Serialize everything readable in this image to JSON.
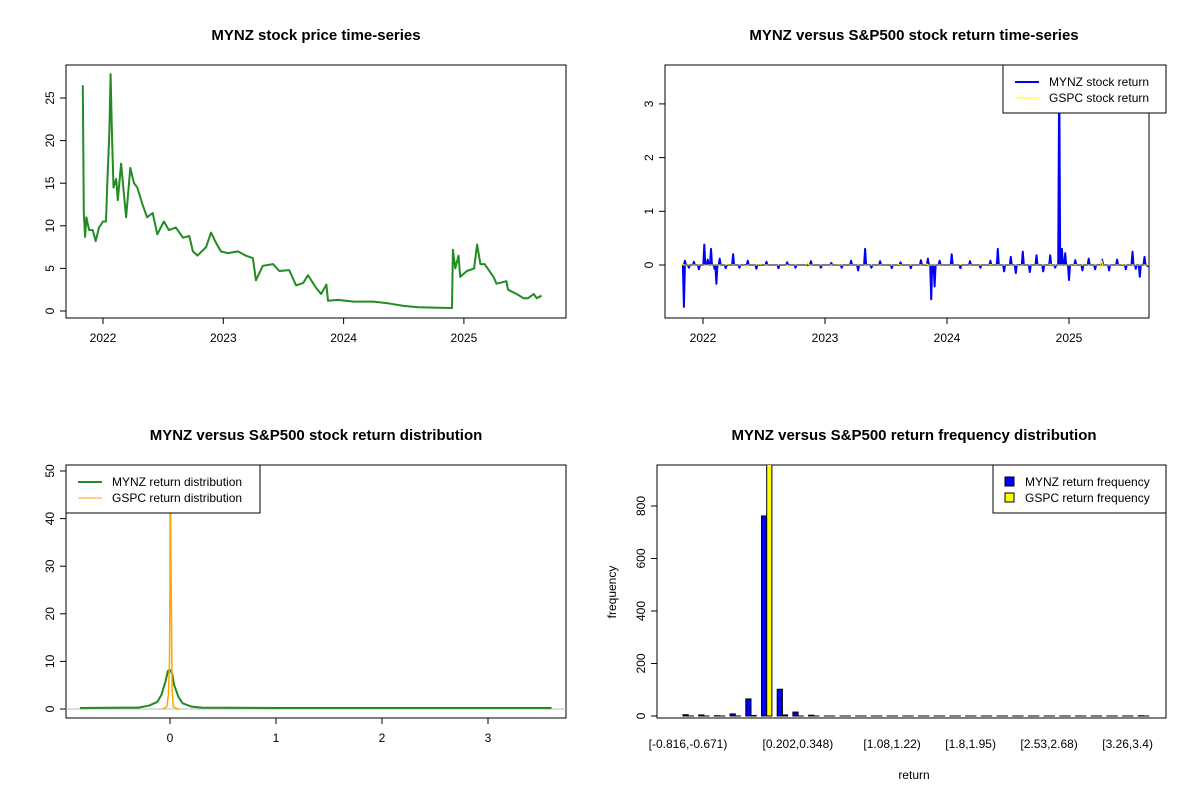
{
  "chart_data": [
    {
      "type": "line",
      "title": "MYNZ stock price time-series",
      "xlabel": "",
      "ylabel": "",
      "x_ticks": [
        "2022",
        "2023",
        "2024",
        "2025"
      ],
      "y_ticks": [
        "0",
        "5",
        "10",
        "15",
        "20",
        "25"
      ],
      "ylim": [
        0,
        28
      ],
      "colors": {
        "price": "#228B22"
      },
      "series": [
        {
          "x": [
            "2021-11-01",
            "2021-11-04",
            "2021-11-08",
            "2021-11-12",
            "2021-11-20",
            "2021-12-01",
            "2021-12-10",
            "2021-12-20",
            "2022-01-01",
            "2022-01-10",
            "2022-01-14",
            "2022-01-20",
            "2022-01-24",
            "2022-01-28",
            "2022-02-02",
            "2022-02-10",
            "2022-02-15",
            "2022-02-25",
            "2022-03-05",
            "2022-03-12",
            "2022-03-25",
            "2022-04-05",
            "2022-04-15",
            "2022-05-01",
            "2022-05-15",
            "2022-06-01",
            "2022-06-15",
            "2022-07-05",
            "2022-07-20",
            "2022-08-10",
            "2022-09-01",
            "2022-09-20",
            "2022-10-01",
            "2022-10-15",
            "2022-11-10",
            "2022-11-25",
            "2022-12-10",
            "2022-12-25",
            "2023-01-15",
            "2023-02-15",
            "2023-03-10",
            "2023-04-01",
            "2023-04-10",
            "2023-05-01",
            "2023-06-01",
            "2023-06-20",
            "2023-07-20",
            "2023-08-10",
            "2023-09-01",
            "2023-09-15",
            "2023-10-10",
            "2023-10-25",
            "2023-11-10",
            "2023-11-15",
            "2023-12-15",
            "2024-02-01",
            "2024-04-01",
            "2024-05-15",
            "2024-07-01",
            "2024-08-15",
            "2024-10-01",
            "2024-11-25",
            "2024-11-28",
            "2024-12-05",
            "2024-12-15",
            "2024-12-20",
            "2025-01-10",
            "2025-02-01",
            "2025-02-10",
            "2025-02-20",
            "2025-03-05",
            "2025-04-01",
            "2025-04-10",
            "2025-05-10",
            "2025-05-15",
            "2025-06-10",
            "2025-07-01",
            "2025-07-15",
            "2025-08-01",
            "2025-08-10",
            "2025-08-25"
          ],
          "y": [
            26.5,
            11.5,
            8.7,
            11,
            9.5,
            9.5,
            8.2,
            9.8,
            10.5,
            10.5,
            15,
            20.8,
            27.8,
            21,
            14.5,
            15.5,
            13,
            17.3,
            14,
            11,
            16.8,
            15,
            14.5,
            12.5,
            11,
            11.5,
            9,
            10.5,
            9.5,
            9.8,
            8.6,
            8.8,
            7,
            6.5,
            7.5,
            9.2,
            8,
            7,
            6.8,
            7,
            6.5,
            6.2,
            3.6,
            5.3,
            5.5,
            4.7,
            4.8,
            3.0,
            3.3,
            4.2,
            2.7,
            2.0,
            3.1,
            1.2,
            1.3,
            1.1,
            1.1,
            0.9,
            0.6,
            0.45,
            0.4,
            0.35,
            7.2,
            5,
            6.5,
            4,
            4.7,
            5,
            7.8,
            5.5,
            5.5,
            4,
            3.2,
            3.5,
            2.5,
            2,
            1.5,
            1.5,
            2.0,
            1.5,
            1.8
          ]
        }
      ]
    },
    {
      "type": "line",
      "title": "MYNZ versus S&P500 stock return time-series",
      "xlabel": "",
      "ylabel": "",
      "x_ticks": [
        "2022",
        "2023",
        "2024",
        "2025"
      ],
      "y_ticks": [
        "0",
        "1",
        "2",
        "3"
      ],
      "ylim": [
        -0.9,
        3.7
      ],
      "legend": {
        "position": "top-right"
      },
      "series": [
        {
          "name": "MYNZ stock return",
          "color": "#0000FF",
          "x": [
            "2021-11-02",
            "2021-11-05",
            "2021-11-08",
            "2021-11-20",
            "2021-12-05",
            "2021-12-20",
            "2022-01-05",
            "2022-01-15",
            "2022-01-25",
            "2022-02-05",
            "2022-02-10",
            "2022-02-20",
            "2022-03-10",
            "2022-04-01",
            "2022-04-20",
            "2022-05-15",
            "2022-06-10",
            "2022-07-10",
            "2022-08-15",
            "2022-09-10",
            "2022-10-05",
            "2022-11-20",
            "2022-12-20",
            "2023-01-20",
            "2023-02-20",
            "2023-03-20",
            "2023-04-10",
            "2023-05-01",
            "2023-05-20",
            "2023-06-15",
            "2023-07-20",
            "2023-08-15",
            "2023-09-15",
            "2023-10-15",
            "2023-11-05",
            "2023-11-15",
            "2023-11-25",
            "2023-12-10",
            "2024-01-15",
            "2024-02-10",
            "2024-03-10",
            "2024-04-10",
            "2024-05-10",
            "2024-06-01",
            "2024-06-20",
            "2024-07-10",
            "2024-07-25",
            "2024-08-15",
            "2024-09-05",
            "2024-09-25",
            "2024-10-15",
            "2024-11-05",
            "2024-11-20",
            "2024-12-02",
            "2024-12-10",
            "2024-12-20",
            "2025-01-01",
            "2025-01-20",
            "2025-02-10",
            "2025-03-01",
            "2025-03-20",
            "2025-04-10",
            "2025-05-01",
            "2025-05-25",
            "2025-06-20",
            "2025-07-10",
            "2025-07-20",
            "2025-08-01",
            "2025-08-15",
            "2025-08-25"
          ],
          "y": [
            0.0,
            -0.78,
            0.08,
            -0.05,
            0.06,
            -0.08,
            0.38,
            0.1,
            0.3,
            -0.08,
            -0.35,
            0.12,
            -0.06,
            0.2,
            -0.05,
            0.08,
            -0.07,
            0.06,
            -0.06,
            0.05,
            -0.05,
            0.07,
            -0.05,
            0.04,
            -0.05,
            0.08,
            -0.1,
            0.3,
            -0.05,
            0.07,
            -0.06,
            0.05,
            -0.06,
            0.09,
            0.12,
            -0.64,
            -0.4,
            0.08,
            0.2,
            -0.06,
            0.07,
            -0.05,
            0.08,
            0.3,
            -0.12,
            0.15,
            -0.15,
            0.25,
            -0.13,
            0.18,
            -0.12,
            0.18,
            -0.05,
            3.6,
            0.3,
            0.22,
            -0.28,
            0.09,
            -0.1,
            0.12,
            -0.08,
            0.1,
            -0.1,
            0.1,
            -0.08,
            0.25,
            -0.07,
            -0.22,
            0.15,
            -0.02
          ]
        },
        {
          "name": "GSPC stock return",
          "color": "#FFFF00",
          "x": [
            "2021-11-02",
            "2022-01-10",
            "2022-03-15",
            "2022-05-10",
            "2022-06-20",
            "2022-09-15",
            "2022-11-10",
            "2023-02-10",
            "2023-05-10",
            "2023-08-10",
            "2023-11-02",
            "2024-02-10",
            "2024-05-10",
            "2024-08-05",
            "2024-11-06",
            "2025-01-20",
            "2025-04-04",
            "2025-04-09",
            "2025-06-10",
            "2025-08-25"
          ],
          "y": [
            0.01,
            -0.02,
            0.02,
            -0.04,
            0.03,
            -0.03,
            0.05,
            0.01,
            -0.01,
            0.01,
            0.02,
            0.01,
            0.01,
            -0.03,
            0.02,
            0.01,
            -0.06,
            0.095,
            0.01,
            0.0
          ]
        }
      ]
    },
    {
      "type": "line",
      "title": "MYNZ versus S&P500 stock return distribution",
      "xlabel": "",
      "ylabel": "",
      "x_ticks": [
        "0",
        "1",
        "2",
        "3"
      ],
      "y_ticks": [
        "0",
        "10",
        "20",
        "30",
        "40",
        "50"
      ],
      "xlim": [
        -0.9,
        3.75
      ],
      "ylim": [
        0,
        52
      ],
      "legend": {
        "position": "top-left"
      },
      "series": [
        {
          "name": "MYNZ return distribution",
          "color": "#228B22",
          "x": [
            -0.85,
            -0.3,
            -0.2,
            -0.12,
            -0.08,
            -0.04,
            -0.02,
            0,
            0.02,
            0.04,
            0.08,
            0.12,
            0.2,
            0.3,
            1,
            2,
            3,
            3.6
          ],
          "y": [
            0.2,
            0.3,
            0.7,
            1.5,
            3,
            6,
            8,
            8.2,
            7.5,
            5,
            2.5,
            1.2,
            0.5,
            0.3,
            0.2,
            0.2,
            0.2,
            0.2
          ]
        },
        {
          "name": "GSPC return distribution",
          "color": "#FFA500",
          "x": [
            -0.07,
            -0.03,
            -0.015,
            -0.005,
            0,
            0.003,
            0.006,
            0.01,
            0.015,
            0.02,
            0.03,
            0.06,
            0.09
          ],
          "y": [
            0,
            0.5,
            3,
            10,
            27,
            60,
            41,
            27,
            16,
            4,
            0.5,
            0.1,
            0
          ]
        }
      ]
    },
    {
      "type": "bar",
      "title": "MYNZ versus S&P500 return frequency distribution",
      "xlabel": "return",
      "ylabel": "frequency",
      "y_ticks": [
        "0",
        "200",
        "400",
        "600",
        "800"
      ],
      "ylim": [
        0,
        950
      ],
      "x_tick_labels": [
        {
          "bin": 1,
          "label": "[-0.816,-0.671)"
        },
        {
          "bin": 8,
          "label": "[0.202,0.348)"
        },
        {
          "bin": 14,
          "label": "[1.08,1.22)"
        },
        {
          "bin": 19,
          "label": "[1.8,1.95)"
        },
        {
          "bin": 24,
          "label": "[2.53,2.68)"
        },
        {
          "bin": 29,
          "label": "[3.26,3.4)"
        }
      ],
      "legend": {
        "position": "top-right"
      },
      "series": [
        {
          "name": "MYNZ return frequency",
          "color": "#0000FF",
          "values": [
            5,
            4,
            1,
            8,
            65,
            762,
            102,
            15,
            3,
            0,
            0,
            0,
            0,
            0,
            0,
            0,
            0,
            0,
            0,
            0,
            0,
            0,
            0,
            0,
            0,
            0,
            0,
            0,
            0,
            1
          ]
        },
        {
          "name": "GSPC return frequency",
          "color": "#FFFF00",
          "values": [
            0,
            0,
            0,
            0,
            2,
            960,
            4,
            0,
            0,
            0,
            0,
            0,
            0,
            0,
            0,
            0,
            0,
            0,
            0,
            0,
            0,
            0,
            0,
            0,
            0,
            0,
            0,
            0,
            0,
            0
          ]
        }
      ]
    }
  ]
}
